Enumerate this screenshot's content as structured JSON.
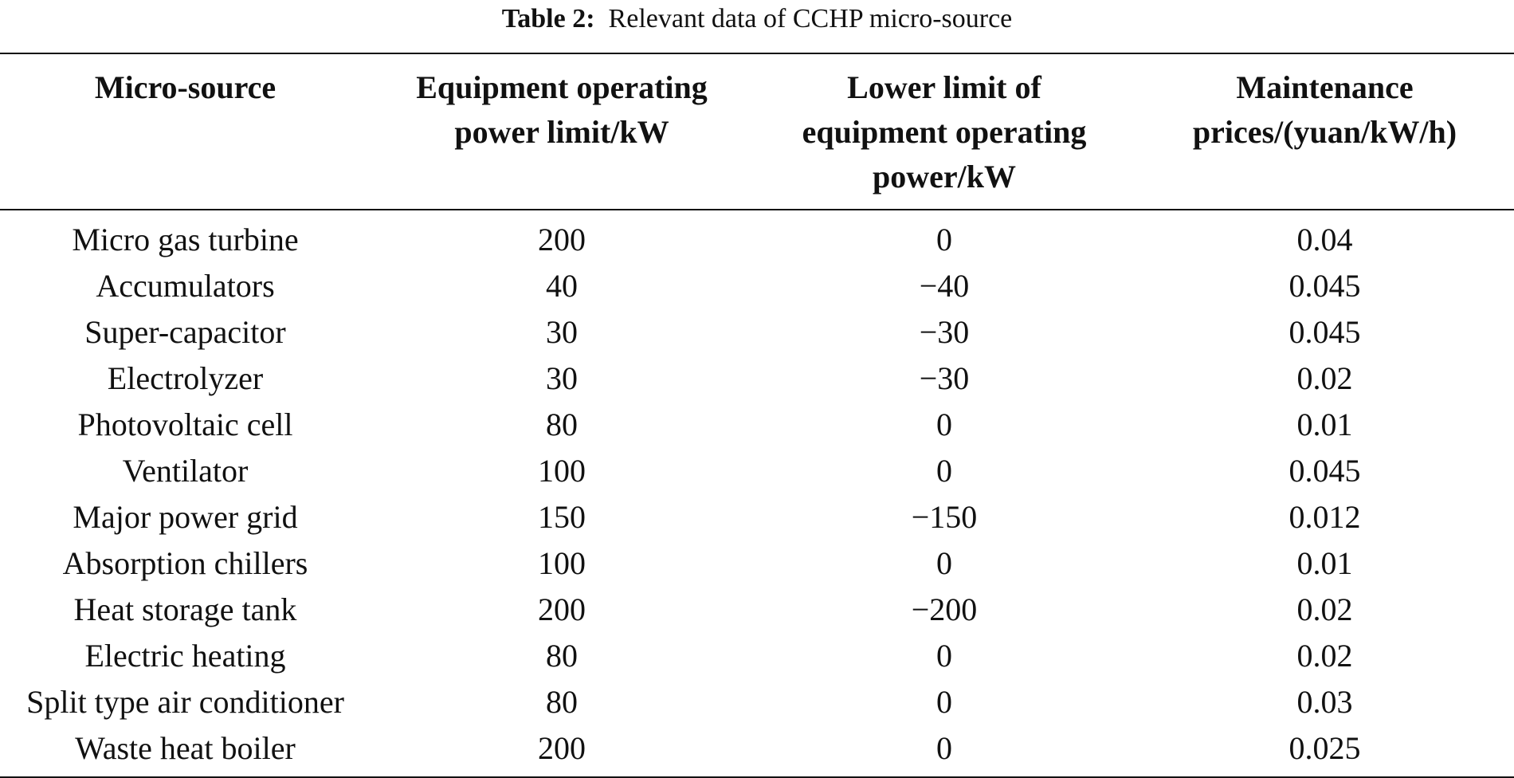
{
  "caption": {
    "label": "Table 2:",
    "text": "Relevant data of CCHP micro-source"
  },
  "table": {
    "headers": [
      "Micro-source",
      "Equipment operating\npower limit/kW",
      "Lower limit of\nequipment operating\npower/kW",
      "Maintenance\nprices/(yuan/kW/h)"
    ],
    "rows": [
      [
        "Micro gas turbine",
        "200",
        "0",
        "0.04"
      ],
      [
        "Accumulators",
        "40",
        "−40",
        "0.045"
      ],
      [
        "Super-capacitor",
        "30",
        "−30",
        "0.045"
      ],
      [
        "Electrolyzer",
        "30",
        "−30",
        "0.02"
      ],
      [
        "Photovoltaic cell",
        "80",
        "0",
        "0.01"
      ],
      [
        "Ventilator",
        "100",
        "0",
        "0.045"
      ],
      [
        "Major power grid",
        "150",
        "−150",
        "0.012"
      ],
      [
        "Absorption chillers",
        "100",
        "0",
        "0.01"
      ],
      [
        "Heat storage tank",
        "200",
        "−200",
        "0.02"
      ],
      [
        "Electric heating",
        "80",
        "0",
        "0.02"
      ],
      [
        "Split type air conditioner",
        "80",
        "0",
        "0.03"
      ],
      [
        "Waste heat boiler",
        "200",
        "0",
        "0.025"
      ]
    ]
  }
}
